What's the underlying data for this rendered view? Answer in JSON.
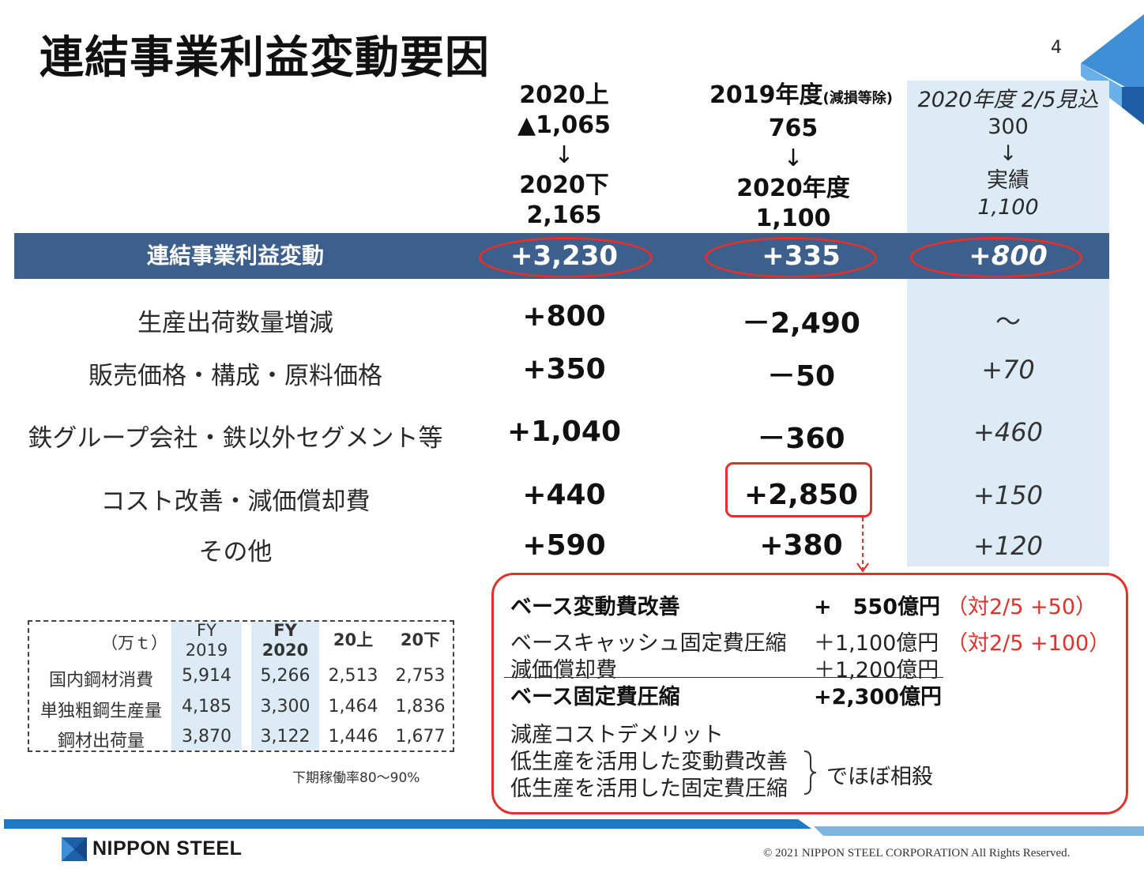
{
  "title": "連結事業利益変動要因",
  "page_number": "4",
  "columns": [
    {
      "from_label": "2020上",
      "from_value": "▲1,065",
      "arrow": "↓",
      "to_label": "2020下",
      "to_value": "2,165"
    },
    {
      "from_label": "2019年度",
      "from_note": "(減損等除)",
      "from_value": "765",
      "arrow": "↓",
      "to_label": "2020年度",
      "to_value": "1,100"
    },
    {
      "from_label": "2020年度 2/5見込",
      "from_value": "300",
      "arrow": "↓",
      "to_label": "実績",
      "to_value": "1,100"
    }
  ],
  "band": {
    "label": "連結事業利益変動",
    "values": [
      "+3,230",
      "+335",
      "+800"
    ]
  },
  "rows": [
    {
      "label": "生産出荷数量増減",
      "values": [
        "+800",
        "－2,490",
        "～"
      ]
    },
    {
      "label": "販売価格・構成・原料価格",
      "values": [
        "+350",
        "－50",
        "+70"
      ]
    },
    {
      "label": "鉄グループ会社・鉄以外セグメント等",
      "values": [
        "+1,040",
        "－360",
        "+460"
      ]
    },
    {
      "label": "コスト改善・減価償却費",
      "values": [
        "+440",
        "+2,850",
        "+150"
      ]
    },
    {
      "label": "その他",
      "values": [
        "+590",
        "+380",
        "+120"
      ]
    }
  ],
  "detail": {
    "line1": {
      "label": "ベース変動費改善",
      "value": "+　550億円",
      "note": "（対2/5 +50）"
    },
    "line2": {
      "label": "ベースキャッシュ固定費圧縮",
      "value": "＋1,100億円",
      "note": "（対2/5 +100）"
    },
    "line3": {
      "label": "減価償却費",
      "value": "＋1,200億円"
    },
    "line4": {
      "label": "ベース固定費圧縮",
      "value": "+2,300億円"
    },
    "line5": "減産コストデメリット",
    "line6": "低生産を活用した変動費改善",
    "line7": "低生産を活用した固定費圧縮",
    "offset_note": "でほぼ相殺"
  },
  "table": {
    "unit": "（万ｔ）",
    "headers": [
      {
        "line1": "FY",
        "line2": "2019"
      },
      {
        "line1": "FY",
        "line2": "2020"
      },
      {
        "line1": "20上",
        "line2": ""
      },
      {
        "line1": "20下",
        "line2": ""
      }
    ],
    "rows": [
      {
        "label": "国内鋼材消費",
        "values": [
          "5,914",
          "5,266",
          "2,513",
          "2,753"
        ]
      },
      {
        "label": "単独粗鋼生産量",
        "values": [
          "4,185",
          "3,300",
          "1,464",
          "1,836"
        ]
      },
      {
        "label": "鋼材出荷量",
        "values": [
          "3,870",
          "3,122",
          "1,446",
          "1,677"
        ]
      }
    ],
    "note": "下期稼働率80～90%"
  },
  "footer": {
    "logo": "NIPPON STEEL",
    "copyright": "© 2021 NIPPON STEEL CORPORATION All Rights Reserved."
  },
  "colors": {
    "band": "#3c5f8c",
    "highlight": "#e3302a",
    "shade": "#dcebf5",
    "footer_bar": "#1d79c1"
  }
}
